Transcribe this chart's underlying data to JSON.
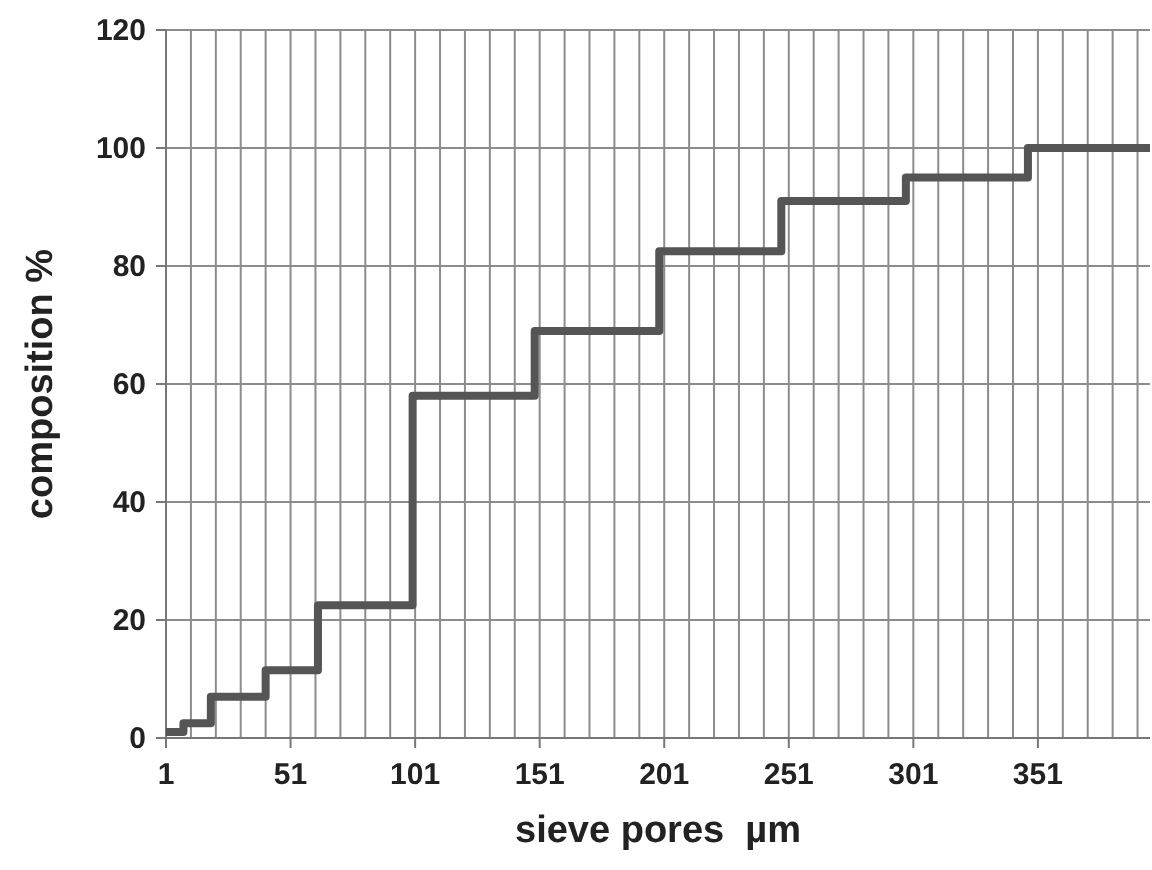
{
  "chart_data": {
    "type": "step",
    "xlabel": "sieve pores  µm",
    "ylabel": "composition %",
    "x": [
      1,
      8,
      19,
      41,
      62,
      100,
      149,
      199,
      248,
      298,
      347,
      396
    ],
    "series": [
      {
        "color": "#555555",
        "values": [
          1,
          2.5,
          7,
          11.5,
          22.5,
          58,
          69,
          82.5,
          91,
          95,
          100,
          100
        ]
      }
    ],
    "xlim": [
      1,
      396
    ],
    "xticks": [
      1,
      51,
      101,
      151,
      201,
      251,
      301,
      351
    ],
    "ylim": [
      0,
      120
    ],
    "yticks": [
      0,
      20,
      40,
      60,
      80,
      100,
      120
    ],
    "grid": true,
    "marker": "none",
    "line_style": "solid"
  }
}
